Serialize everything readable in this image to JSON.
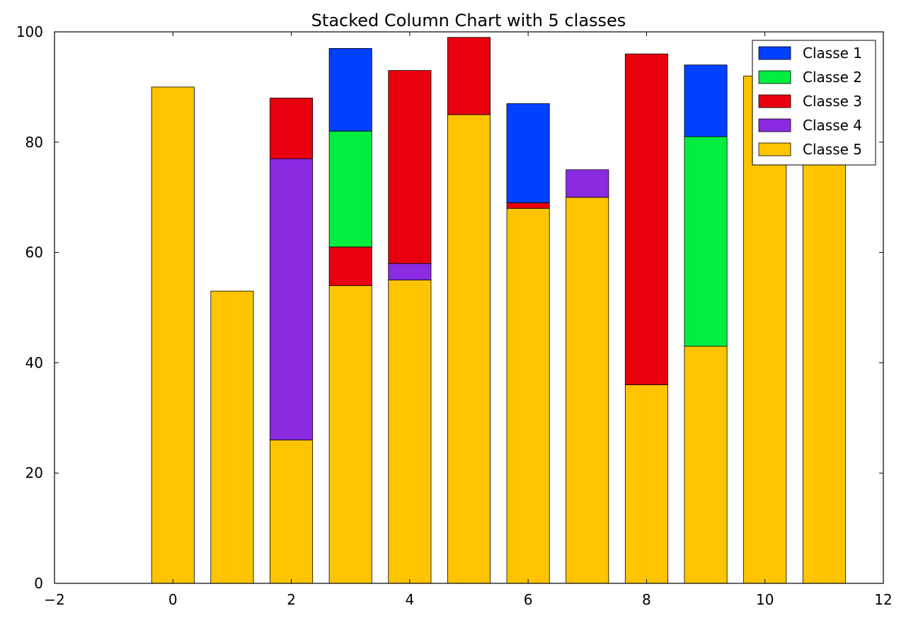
{
  "chart_data": {
    "type": "bar",
    "stacked": true,
    "title": "Stacked Column Chart with 5 classes",
    "xlabel": "",
    "ylabel": "",
    "x": [
      0,
      1,
      2,
      3,
      4,
      5,
      6,
      7,
      8,
      9,
      10,
      11
    ],
    "xlim": [
      -2,
      12
    ],
    "ylim": [
      0,
      100
    ],
    "xticks": [
      "−2",
      "0",
      "2",
      "4",
      "6",
      "8",
      "10",
      "12"
    ],
    "yticks": [
      "0",
      "20",
      "40",
      "60",
      "80",
      "100"
    ],
    "grid": false,
    "legend_position": "top-right",
    "series": [
      {
        "name": "Classe 1",
        "color": "#0040ff",
        "values": [
          0,
          0,
          0,
          15,
          0,
          0,
          18,
          0,
          0,
          13,
          0,
          0
        ]
      },
      {
        "name": "Classe 2",
        "color": "#00ee40",
        "values": [
          0,
          0,
          0,
          21,
          0,
          0,
          0,
          0,
          0,
          38,
          0,
          0
        ]
      },
      {
        "name": "Classe 3",
        "color": "#e8000e",
        "values": [
          0,
          0,
          11,
          7,
          35,
          14,
          1,
          0,
          60,
          0,
          0,
          0
        ]
      },
      {
        "name": "Classe 4",
        "color": "#8a2be2",
        "values": [
          0,
          0,
          51,
          0,
          3,
          0,
          0,
          5,
          0,
          0,
          0,
          0
        ]
      },
      {
        "name": "Classe 5",
        "color": "#ffc400",
        "values": [
          90,
          53,
          26,
          54,
          55,
          85,
          68,
          70,
          36,
          43,
          92,
          79
        ]
      }
    ]
  }
}
